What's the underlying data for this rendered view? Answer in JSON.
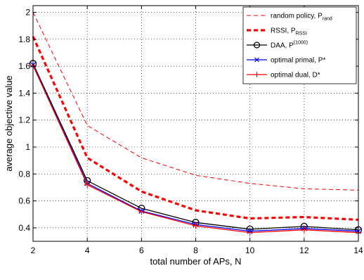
{
  "chart_data": {
    "type": "line",
    "title": "",
    "xlabel": "total number of APs, N",
    "ylabel": "average objective value",
    "xlim": [
      2,
      14
    ],
    "ylim": [
      0.3,
      2.05
    ],
    "xticks": [
      2,
      4,
      6,
      8,
      10,
      12,
      14
    ],
    "yticks": [
      0.4,
      0.6,
      0.8,
      1,
      1.2,
      1.4,
      1.6,
      1.8,
      2
    ],
    "ytick_labels": [
      "0.4",
      "0.6",
      "0.8",
      "1",
      "1.2",
      "1.4",
      "1.6",
      "1.8",
      "2"
    ],
    "grid": true,
    "legend_position": "top-right",
    "x": [
      2,
      4,
      6,
      8,
      10,
      12,
      14
    ],
    "series": [
      {
        "legend_main": "random policy, P",
        "legend_sub": "rand",
        "legend_sup": "",
        "color": "#ff0000",
        "style": "dashed-thin",
        "marker": "none",
        "values": [
          2.0,
          1.16,
          0.92,
          0.79,
          0.73,
          0.69,
          0.68
        ]
      },
      {
        "legend_main": "RSSI, P",
        "legend_sub": "RSSI",
        "legend_sup": "",
        "color": "#ff0000",
        "style": "dashed-thick",
        "marker": "none",
        "values": [
          1.82,
          0.92,
          0.67,
          0.53,
          0.47,
          0.48,
          0.46
        ]
      },
      {
        "legend_main": "DAA, P",
        "legend_sub": "",
        "legend_sup": "(1000)",
        "color": "#000000",
        "style": "solid",
        "marker": "circle",
        "values": [
          1.62,
          0.75,
          0.545,
          0.44,
          0.39,
          0.41,
          0.385
        ]
      },
      {
        "legend_main": "optimal primal, P*",
        "legend_sub": "",
        "legend_sup": "",
        "color": "#0000ff",
        "style": "solid",
        "marker": "x",
        "values": [
          1.61,
          0.73,
          0.525,
          0.425,
          0.375,
          0.395,
          0.375
        ]
      },
      {
        "legend_main": "optimal dual, D*",
        "legend_sub": "",
        "legend_sup": "",
        "color": "#ff0000",
        "style": "solid",
        "marker": "plus",
        "values": [
          1.605,
          0.72,
          0.52,
          0.415,
          0.365,
          0.385,
          0.365
        ]
      }
    ]
  }
}
